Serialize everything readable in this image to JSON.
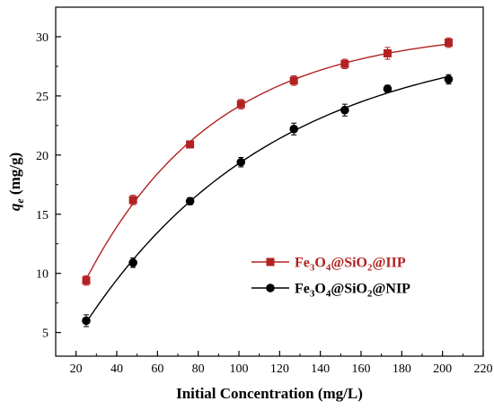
{
  "chart_data": {
    "type": "scatter",
    "xlabel": "Initial Concentration (mg/L)",
    "ylabel_main": "q",
    "ylabel_sub": "e",
    "ylabel_unit": " (mg/g)",
    "xlim": [
      10,
      220
    ],
    "ylim": [
      3,
      32.5
    ],
    "xticks": [
      20,
      40,
      60,
      80,
      100,
      120,
      140,
      160,
      180,
      200,
      220
    ],
    "yticks": [
      5,
      10,
      15,
      20,
      25,
      30
    ],
    "grid": false,
    "legend": "right",
    "series": [
      {
        "name_parts": [
          "Fe",
          "3",
          "O",
          "4",
          "@SiO",
          "2",
          "@IIP"
        ],
        "color": "#b22222",
        "marker": "square",
        "x": [
          25,
          48,
          76,
          101,
          127,
          152,
          173,
          203
        ],
        "y": [
          9.4,
          16.2,
          20.9,
          24.3,
          26.3,
          27.7,
          28.6,
          29.5
        ],
        "err": [
          0.4,
          0.4,
          0.3,
          0.4,
          0.4,
          0.4,
          0.5,
          0.4
        ]
      },
      {
        "name_parts": [
          "Fe",
          "3",
          "O",
          "4",
          "@SiO",
          "2",
          "@NIP"
        ],
        "color": "#000000",
        "marker": "circle",
        "x": [
          25,
          48,
          76,
          101,
          127,
          152,
          173,
          203
        ],
        "y": [
          6.0,
          10.9,
          16.1,
          19.4,
          22.2,
          23.8,
          25.6,
          26.4
        ],
        "err": [
          0.5,
          0.4,
          0.3,
          0.4,
          0.5,
          0.5,
          0.3,
          0.4
        ]
      }
    ]
  }
}
